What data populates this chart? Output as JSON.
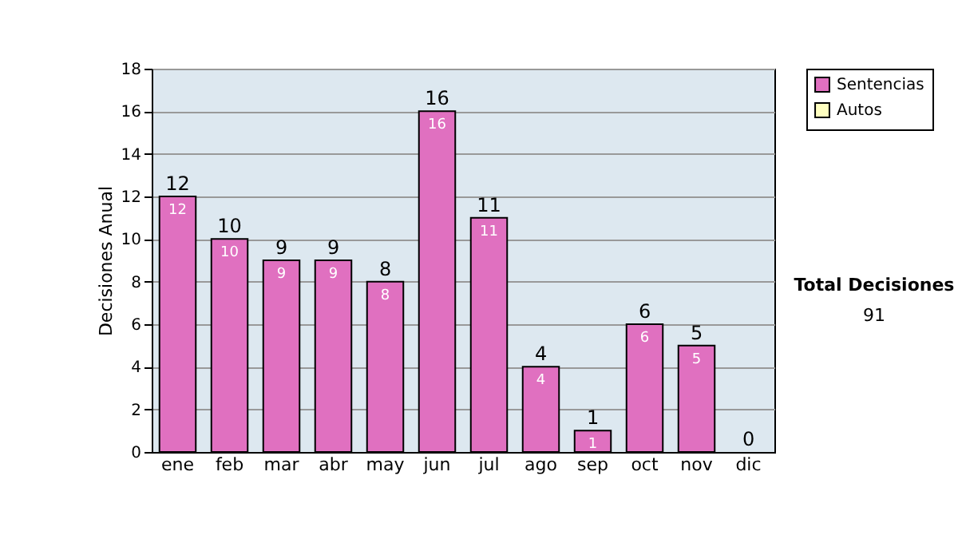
{
  "chart_data": {
    "type": "bar",
    "stacked": true,
    "ylabel": "Decisiones Anual",
    "categories": [
      "ene",
      "feb",
      "mar",
      "abr",
      "may",
      "jun",
      "jul",
      "ago",
      "sep",
      "oct",
      "nov",
      "dic"
    ],
    "series": [
      {
        "name": "Sentencias",
        "color": "#e070c0",
        "values": [
          12,
          10,
          9,
          9,
          8,
          16,
          11,
          4,
          1,
          6,
          5,
          0
        ],
        "value_labels": [
          "12",
          "10",
          "9",
          "9",
          "8",
          "16",
          "11",
          "4",
          "1",
          "6",
          "5",
          null
        ]
      },
      {
        "name": "Autos",
        "color": "#ffffc0",
        "values": [
          0,
          0,
          0,
          0,
          0,
          0,
          0,
          0,
          0,
          0,
          0,
          0
        ]
      }
    ],
    "totals": [
      "12",
      "10",
      "9",
      "9",
      "8",
      "16",
      "11",
      "4",
      "1",
      "6",
      "5",
      "0"
    ],
    "ylim": [
      0,
      18
    ],
    "yticks": [
      0,
      2,
      4,
      6,
      8,
      10,
      12,
      14,
      16,
      18
    ],
    "grid": "y",
    "legend": "right",
    "annotations": [
      "Total Decisiones",
      "91"
    ]
  }
}
